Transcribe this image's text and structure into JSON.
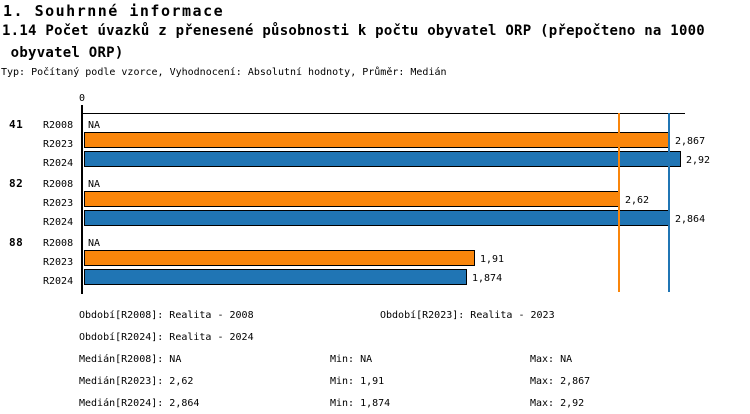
{
  "header": {
    "section_title": "1. Souhrnné informace",
    "indicator_title_line1": "1.14 Počet úvazků z přenesené působnosti k počtu obyvatel ORP (přepočteno na 1000",
    "indicator_title_line2": " obyvatel ORP)",
    "meta": "Typ: Počítaný podle vzorce, Vyhodnocení: Absolutní hodnoty, Průměr: Medián"
  },
  "chart_data": {
    "type": "bar",
    "orientation": "horizontal",
    "title": "1.14 Počet úvazků z přenesené působnosti k počtu obyvatel ORP (přepočteno na 1000 obyvatel ORP)",
    "axis": {
      "zero_label": "0",
      "xmax": 2.92
    },
    "grid": "off",
    "colors": {
      "R2023": "#FA860B",
      "R2024": "#2075B4",
      "bar_border": "#000000"
    },
    "groups": [
      {
        "label": "41",
        "rows": [
          {
            "series": "R2008",
            "value": null,
            "display": "NA"
          },
          {
            "series": "R2023",
            "value": 2.867,
            "display": "2,867"
          },
          {
            "series": "R2024",
            "value": 2.92,
            "display": "2,92"
          }
        ]
      },
      {
        "label": "82",
        "rows": [
          {
            "series": "R2008",
            "value": null,
            "display": "NA"
          },
          {
            "series": "R2023",
            "value": 2.62,
            "display": "2,62"
          },
          {
            "series": "R2024",
            "value": 2.864,
            "display": "2,864"
          }
        ]
      },
      {
        "label": "88",
        "rows": [
          {
            "series": "R2008",
            "value": null,
            "display": "NA"
          },
          {
            "series": "R2023",
            "value": 1.91,
            "display": "1,91"
          },
          {
            "series": "R2024",
            "value": 1.874,
            "display": "1,874"
          }
        ]
      }
    ],
    "reference_lines": [
      {
        "name": "median-R2023",
        "value": 2.62,
        "color": "#FA860B"
      },
      {
        "name": "median-R2024",
        "value": 2.864,
        "color": "#2075B4"
      }
    ]
  },
  "legend": {
    "items": [
      {
        "label": "Období[R2008]: Realita - 2008"
      },
      {
        "label": "Období[R2023]: Realita - 2023"
      },
      {
        "label": "Období[R2024]: Realita - 2024"
      }
    ]
  },
  "stats": {
    "rows": [
      {
        "median": "Medián[R2008]: NA",
        "min": "Min: NA",
        "max": "Max: NA"
      },
      {
        "median": "Medián[R2023]: 2,62",
        "min": "Min: 1,91",
        "max": "Max: 2,867"
      },
      {
        "median": "Medián[R2024]: 2,864",
        "min": "Min: 1,874",
        "max": "Max: 2,92"
      }
    ]
  }
}
